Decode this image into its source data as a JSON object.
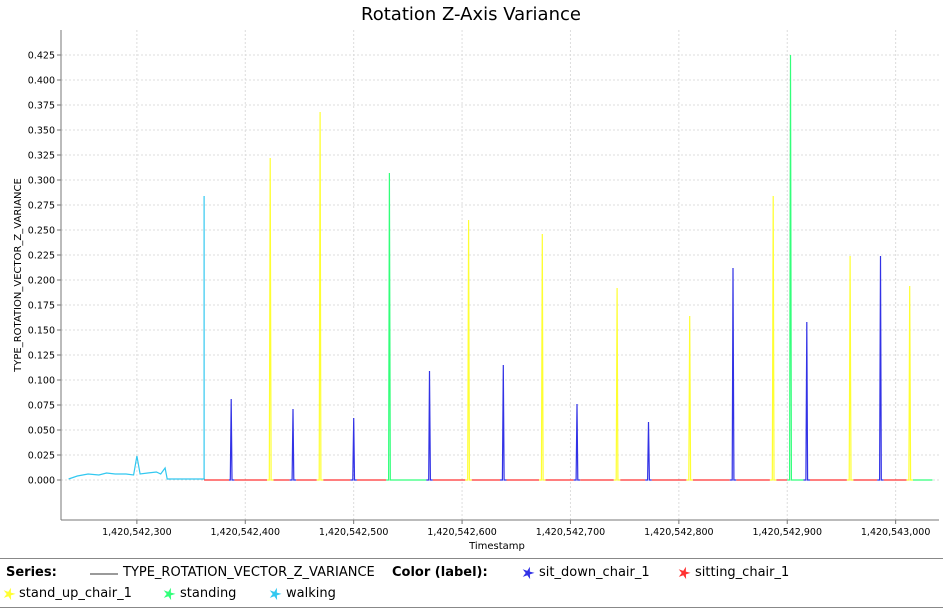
{
  "chart_data": {
    "type": "line",
    "title": "Rotation Z-Axis Variance",
    "xlabel": "Timestamp",
    "ylabel": "TYPE_ROTATION_VECTOR_Z_VARIANCE",
    "xlim": [
      1420542230,
      1420543040
    ],
    "ylim": [
      -0.04,
      0.45
    ],
    "x_ticks": [
      1420542300,
      1420542400,
      1420542500,
      1420542600,
      1420542700,
      1420542800,
      1420542900,
      1420543000
    ],
    "x_tick_labels": [
      "1,420,542,300",
      "1,420,542,400",
      "1,420,542,500",
      "1,420,542,600",
      "1,420,542,700",
      "1,420,542,800",
      "1,420,542,900",
      "1,420,543,000"
    ],
    "y_ticks": [
      0.0,
      0.025,
      0.05,
      0.075,
      0.1,
      0.125,
      0.15,
      0.175,
      0.2,
      0.225,
      0.25,
      0.275,
      0.3,
      0.325,
      0.35,
      0.375,
      0.4,
      0.425
    ],
    "y_tick_labels": [
      "0.000",
      "0.025",
      "0.050",
      "0.075",
      "0.100",
      "0.125",
      "0.150",
      "0.175",
      "0.200",
      "0.225",
      "0.250",
      "0.275",
      "0.300",
      "0.325",
      "0.350",
      "0.375",
      "0.400",
      "0.425"
    ],
    "grid": true,
    "series_name": "TYPE_ROTATION_VECTOR_Z_VARIANCE",
    "label_colors": {
      "sit_down_chair_1": "#3232e6",
      "sitting_chair_1": "#ff3232",
      "stand_up_chair_1": "#ffff32",
      "standing": "#32ff7a",
      "walking": "#32c8f0"
    },
    "segments": [
      {
        "label": "walking",
        "x_start": 1420542237,
        "x_end": 1420542362,
        "baseline": 0.001,
        "noise": [
          [
            1420542237,
            0.001
          ],
          [
            1420542245,
            0.004
          ],
          [
            1420542255,
            0.006
          ],
          [
            1420542265,
            0.005
          ],
          [
            1420542272,
            0.007
          ],
          [
            1420542280,
            0.006
          ],
          [
            1420542290,
            0.006
          ],
          [
            1420542297,
            0.005
          ],
          [
            1420542300,
            0.024
          ],
          [
            1420542303,
            0.006
          ],
          [
            1420542310,
            0.007
          ],
          [
            1420542318,
            0.008
          ],
          [
            1420542322,
            0.006
          ],
          [
            1420542326,
            0.012
          ],
          [
            1420542328,
            0.001
          ],
          [
            1420542362,
            0.001
          ]
        ],
        "spike": {
          "x": 1420542362,
          "y": 0.284
        }
      },
      {
        "label": "sitting_chair_1",
        "x_start": 1420542362,
        "x_end": 1420542385,
        "spike": null
      },
      {
        "label": "sit_down_chair_1",
        "x_start": 1420542385,
        "x_end": 1420542390,
        "spike": {
          "x": 1420542387,
          "y": 0.081
        }
      },
      {
        "label": "sitting_chair_1",
        "x_start": 1420542390,
        "x_end": 1420542420,
        "spike": null
      },
      {
        "label": "stand_up_chair_1",
        "x_start": 1420542420,
        "x_end": 1420542426,
        "spike": {
          "x": 1420542423,
          "y": 0.322
        }
      },
      {
        "label": "sitting_chair_1",
        "x_start": 1420542426,
        "x_end": 1420542441,
        "spike": null
      },
      {
        "label": "sit_down_chair_1",
        "x_start": 1420542441,
        "x_end": 1420542447,
        "spike": {
          "x": 1420542444,
          "y": 0.071
        }
      },
      {
        "label": "sitting_chair_1",
        "x_start": 1420542447,
        "x_end": 1420542466,
        "spike": null
      },
      {
        "label": "stand_up_chair_1",
        "x_start": 1420542466,
        "x_end": 1420542472,
        "spike": {
          "x": 1420542469,
          "y": 0.368
        }
      },
      {
        "label": "sitting_chair_1",
        "x_start": 1420542472,
        "x_end": 1420542497,
        "spike": null
      },
      {
        "label": "sit_down_chair_1",
        "x_start": 1420542497,
        "x_end": 1420542503,
        "spike": {
          "x": 1420542500,
          "y": 0.062
        }
      },
      {
        "label": "sitting_chair_1",
        "x_start": 1420542503,
        "x_end": 1420542530,
        "spike": null
      },
      {
        "label": "standing",
        "x_start": 1420542530,
        "x_end": 1420542567,
        "spike": {
          "x": 1420542533,
          "y": 0.307
        }
      },
      {
        "label": "sit_down_chair_1",
        "x_start": 1420542567,
        "x_end": 1420542573,
        "spike": {
          "x": 1420542570,
          "y": 0.109
        }
      },
      {
        "label": "sitting_chair_1",
        "x_start": 1420542573,
        "x_end": 1420542603,
        "spike": null
      },
      {
        "label": "stand_up_chair_1",
        "x_start": 1420542603,
        "x_end": 1420542609,
        "spike": {
          "x": 1420542606,
          "y": 0.26
        }
      },
      {
        "label": "sitting_chair_1",
        "x_start": 1420542609,
        "x_end": 1420542635,
        "spike": null
      },
      {
        "label": "sit_down_chair_1",
        "x_start": 1420542635,
        "x_end": 1420542641,
        "spike": {
          "x": 1420542638,
          "y": 0.115
        }
      },
      {
        "label": "sitting_chair_1",
        "x_start": 1420542641,
        "x_end": 1420542671,
        "spike": null
      },
      {
        "label": "stand_up_chair_1",
        "x_start": 1420542671,
        "x_end": 1420542677,
        "spike": {
          "x": 1420542674,
          "y": 0.246
        }
      },
      {
        "label": "sitting_chair_1",
        "x_start": 1420542677,
        "x_end": 1420542703,
        "spike": null
      },
      {
        "label": "sit_down_chair_1",
        "x_start": 1420542703,
        "x_end": 1420542709,
        "spike": {
          "x": 1420542706,
          "y": 0.076
        }
      },
      {
        "label": "sitting_chair_1",
        "x_start": 1420542709,
        "x_end": 1420542740,
        "spike": null
      },
      {
        "label": "stand_up_chair_1",
        "x_start": 1420542740,
        "x_end": 1420542746,
        "spike": {
          "x": 1420542743,
          "y": 0.192
        }
      },
      {
        "label": "sitting_chair_1",
        "x_start": 1420542746,
        "x_end": 1420542769,
        "spike": null
      },
      {
        "label": "sit_down_chair_1",
        "x_start": 1420542769,
        "x_end": 1420542775,
        "spike": {
          "x": 1420542772,
          "y": 0.058
        }
      },
      {
        "label": "sitting_chair_1",
        "x_start": 1420542775,
        "x_end": 1420542807,
        "spike": null
      },
      {
        "label": "stand_up_chair_1",
        "x_start": 1420542807,
        "x_end": 1420542813,
        "spike": {
          "x": 1420542810,
          "y": 0.164
        }
      },
      {
        "label": "sitting_chair_1",
        "x_start": 1420542813,
        "x_end": 1420542847,
        "spike": null
      },
      {
        "label": "sit_down_chair_1",
        "x_start": 1420542847,
        "x_end": 1420542853,
        "spike": {
          "x": 1420542850,
          "y": 0.212
        }
      },
      {
        "label": "sitting_chair_1",
        "x_start": 1420542853,
        "x_end": 1420542884,
        "spike": null
      },
      {
        "label": "stand_up_chair_1",
        "x_start": 1420542884,
        "x_end": 1420542890,
        "spike": {
          "x": 1420542887,
          "y": 0.284
        }
      },
      {
        "label": "sitting_chair_1",
        "x_start": 1420542890,
        "x_end": 1420542900,
        "spike": null
      },
      {
        "label": "standing",
        "x_start": 1420542900,
        "x_end": 1420542915,
        "spike": {
          "x": 1420542903,
          "y": 0.425
        }
      },
      {
        "label": "sit_down_chair_1",
        "x_start": 1420542915,
        "x_end": 1420542921,
        "spike": {
          "x": 1420542918,
          "y": 0.158
        }
      },
      {
        "label": "sitting_chair_1",
        "x_start": 1420542921,
        "x_end": 1420542955,
        "spike": null
      },
      {
        "label": "stand_up_chair_1",
        "x_start": 1420542955,
        "x_end": 1420542961,
        "spike": {
          "x": 1420542958,
          "y": 0.224
        }
      },
      {
        "label": "sitting_chair_1",
        "x_start": 1420542961,
        "x_end": 1420542983,
        "spike": null
      },
      {
        "label": "sit_down_chair_1",
        "x_start": 1420542983,
        "x_end": 1420542989,
        "spike": {
          "x": 1420542986,
          "y": 0.224
        }
      },
      {
        "label": "sitting_chair_1",
        "x_start": 1420542989,
        "x_end": 1420543010,
        "spike": null
      },
      {
        "label": "stand_up_chair_1",
        "x_start": 1420543010,
        "x_end": 1420543016,
        "spike": {
          "x": 1420543013,
          "y": 0.194
        }
      },
      {
        "label": "standing",
        "x_start": 1420543016,
        "x_end": 1420543034,
        "spike": null
      }
    ]
  },
  "legend": {
    "series_heading": "Series:",
    "series_name": "TYPE_ROTATION_VECTOR_Z_VARIANCE",
    "series_color": "#9a9a9a",
    "color_heading": "Color (label):",
    "labels": [
      {
        "name": "sit_down_chair_1",
        "color": "#3232e6"
      },
      {
        "name": "sitting_chair_1",
        "color": "#ff3232"
      },
      {
        "name": "stand_up_chair_1",
        "color": "#ffff32"
      },
      {
        "name": "standing",
        "color": "#32ff7a"
      },
      {
        "name": "walking",
        "color": "#32c8f0"
      }
    ]
  }
}
